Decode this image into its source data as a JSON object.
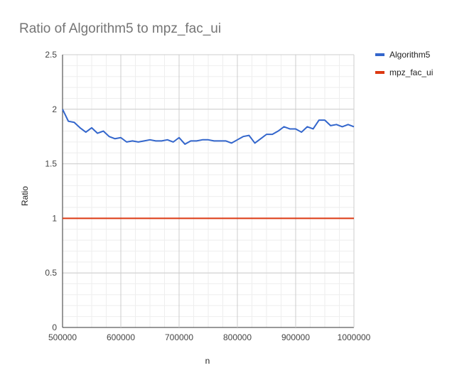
{
  "chart_data": {
    "type": "line",
    "title": "Ratio of Algorithm5 to mpz_fac_ui",
    "xlabel": "n",
    "ylabel": "Ratio",
    "xlim": [
      500000,
      1000000
    ],
    "ylim": [
      0,
      2.5
    ],
    "x_ticks": [
      500000,
      600000,
      700000,
      800000,
      900000,
      1000000
    ],
    "y_ticks": [
      0,
      0.5,
      1,
      1.5,
      2,
      2.5
    ],
    "x_tick_labels": [
      "500000",
      "600000",
      "700000",
      "800000",
      "900000",
      "1000000"
    ],
    "y_tick_labels": [
      "0",
      "0.5",
      "1",
      "1.5",
      "2",
      "2.5"
    ],
    "grid": true,
    "legend_position": "right",
    "series": [
      {
        "name": "Algorithm5",
        "color": "#3366cc",
        "x": [
          500000,
          510000,
          520000,
          530000,
          540000,
          550000,
          560000,
          570000,
          580000,
          590000,
          600000,
          610000,
          620000,
          630000,
          640000,
          650000,
          660000,
          670000,
          680000,
          690000,
          700000,
          710000,
          720000,
          730000,
          740000,
          750000,
          760000,
          770000,
          780000,
          790000,
          800000,
          810000,
          820000,
          830000,
          840000,
          850000,
          860000,
          870000,
          880000,
          890000,
          900000,
          910000,
          920000,
          930000,
          940000,
          950000,
          960000,
          970000,
          980000,
          990000,
          1000000
        ],
        "values": [
          2.0,
          1.89,
          1.88,
          1.83,
          1.79,
          1.83,
          1.78,
          1.8,
          1.75,
          1.73,
          1.74,
          1.7,
          1.71,
          1.7,
          1.71,
          1.72,
          1.71,
          1.71,
          1.72,
          1.7,
          1.74,
          1.68,
          1.71,
          1.71,
          1.72,
          1.72,
          1.71,
          1.71,
          1.71,
          1.69,
          1.72,
          1.75,
          1.76,
          1.69,
          1.73,
          1.77,
          1.77,
          1.8,
          1.84,
          1.82,
          1.82,
          1.79,
          1.84,
          1.82,
          1.9,
          1.9,
          1.85,
          1.86,
          1.84,
          1.86,
          1.84
        ]
      },
      {
        "name": "mpz_fac_ui",
        "color": "#dc3912",
        "x": [
          500000,
          1000000
        ],
        "values": [
          1.0,
          1.0
        ]
      }
    ]
  }
}
